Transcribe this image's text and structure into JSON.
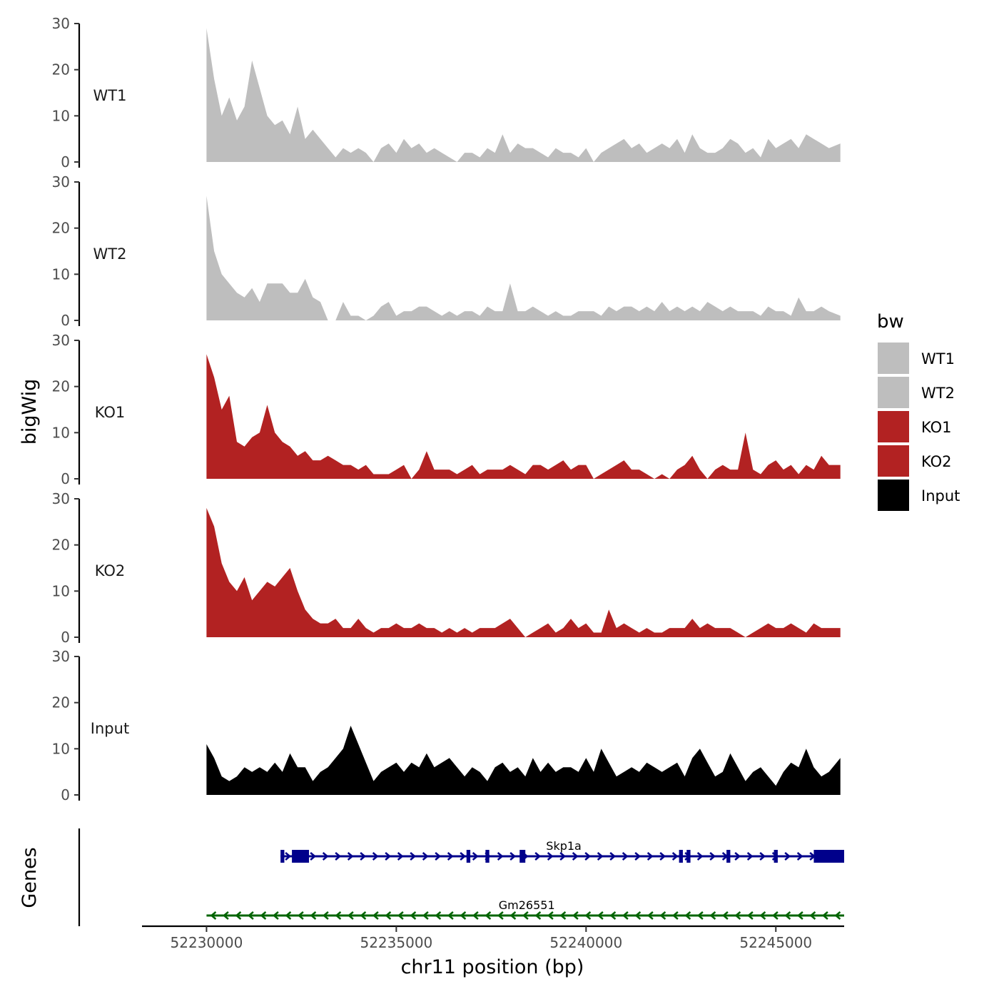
{
  "chart_data": {
    "type": "area",
    "title": "",
    "ylabel": "bigWig",
    "xlabel": "chr11 position (bp)",
    "xlim": [
      52228300,
      52246800
    ],
    "ylim": [
      0,
      30
    ],
    "yticks": [
      0,
      10,
      20,
      30
    ],
    "xticks": [
      52230000,
      52235000,
      52240000,
      52245000
    ],
    "xtick_labels": [
      "52230000",
      "52235000",
      "52240000",
      "52245000"
    ],
    "legend": {
      "title": "bw",
      "position": "right",
      "entries": [
        {
          "label": "WT1",
          "color": "#bebebe"
        },
        {
          "label": "WT2",
          "color": "#bebebe"
        },
        {
          "label": "KO1",
          "color": "#b22222"
        },
        {
          "label": "KO2",
          "color": "#b22222"
        },
        {
          "label": "Input",
          "color": "#000000"
        }
      ]
    },
    "x": [
      52230000,
      52230200,
      52230400,
      52230600,
      52230800,
      52231000,
      52231200,
      52231400,
      52231600,
      52231800,
      52232000,
      52232200,
      52232400,
      52232600,
      52232800,
      52233000,
      52233200,
      52233400,
      52233600,
      52233800,
      52234000,
      52234200,
      52234400,
      52234600,
      52234800,
      52235000,
      52235200,
      52235400,
      52235600,
      52235800,
      52236000,
      52236200,
      52236400,
      52236600,
      52236800,
      52237000,
      52237200,
      52237400,
      52237600,
      52237800,
      52238000,
      52238200,
      52238400,
      52238600,
      52238800,
      52239000,
      52239200,
      52239400,
      52239600,
      52239800,
      52240000,
      52240200,
      52240400,
      52240600,
      52240800,
      52241000,
      52241200,
      52241400,
      52241600,
      52241800,
      52242000,
      52242200,
      52242400,
      52242600,
      52242800,
      52243000,
      52243200,
      52243400,
      52243600,
      52243800,
      52244000,
      52244200,
      52244400,
      52244600,
      52244800,
      52245000,
      52245200,
      52245400,
      52245600,
      52245800,
      52246000,
      52246200,
      52246400,
      52246700
    ],
    "series": [
      {
        "name": "WT1",
        "color": "#bebebe",
        "values": [
          29,
          18,
          10,
          14,
          9,
          12,
          22,
          16,
          10,
          8,
          9,
          6,
          12,
          5,
          7,
          5,
          3,
          1,
          3,
          2,
          3,
          2,
          0,
          3,
          4,
          2,
          5,
          3,
          4,
          2,
          3,
          2,
          1,
          0,
          2,
          2,
          1,
          3,
          2,
          6,
          2,
          4,
          3,
          3,
          2,
          1,
          3,
          2,
          2,
          1,
          3,
          0,
          2,
          3,
          4,
          5,
          3,
          4,
          2,
          3,
          4,
          3,
          5,
          2,
          6,
          3,
          2,
          2,
          3,
          5,
          4,
          2,
          3,
          1,
          5,
          3,
          4,
          5,
          3,
          6,
          5,
          4,
          3,
          4
        ]
      },
      {
        "name": "WT2",
        "color": "#bebebe",
        "values": [
          27,
          15,
          10,
          8,
          6,
          5,
          7,
          4,
          8,
          8,
          8,
          6,
          6,
          9,
          5,
          4,
          0,
          0,
          4,
          1,
          1,
          0,
          1,
          3,
          4,
          1,
          2,
          2,
          3,
          3,
          2,
          1,
          2,
          1,
          2,
          2,
          1,
          3,
          2,
          2,
          8,
          2,
          2,
          3,
          2,
          1,
          2,
          1,
          1,
          2,
          2,
          2,
          1,
          3,
          2,
          3,
          3,
          2,
          3,
          2,
          4,
          2,
          3,
          2,
          3,
          2,
          4,
          3,
          2,
          3,
          2,
          2,
          2,
          1,
          3,
          2,
          2,
          1,
          5,
          2,
          2,
          3,
          2,
          1
        ]
      },
      {
        "name": "KO1",
        "color": "#b22222",
        "values": [
          27,
          22,
          15,
          18,
          8,
          7,
          9,
          10,
          16,
          10,
          8,
          7,
          5,
          6,
          4,
          4,
          5,
          4,
          3,
          3,
          2,
          3,
          1,
          1,
          1,
          2,
          3,
          0,
          2,
          6,
          2,
          2,
          2,
          1,
          2,
          3,
          1,
          2,
          2,
          2,
          3,
          2,
          1,
          3,
          3,
          2,
          3,
          4,
          2,
          3,
          3,
          0,
          1,
          2,
          3,
          4,
          2,
          2,
          1,
          0,
          1,
          0,
          2,
          3,
          5,
          2,
          0,
          2,
          3,
          2,
          2,
          10,
          2,
          1,
          3,
          4,
          2,
          3,
          1,
          3,
          2,
          5,
          3,
          3
        ]
      },
      {
        "name": "KO2",
        "color": "#b22222",
        "values": [
          28,
          24,
          16,
          12,
          10,
          13,
          8,
          10,
          12,
          11,
          13,
          15,
          10,
          6,
          4,
          3,
          3,
          4,
          2,
          2,
          4,
          2,
          1,
          2,
          2,
          3,
          2,
          2,
          3,
          2,
          2,
          1,
          2,
          1,
          2,
          1,
          2,
          2,
          2,
          3,
          4,
          2,
          0,
          1,
          2,
          3,
          1,
          2,
          4,
          2,
          3,
          1,
          1,
          6,
          2,
          3,
          2,
          1,
          2,
          1,
          1,
          2,
          2,
          2,
          4,
          2,
          3,
          2,
          2,
          2,
          1,
          0,
          1,
          2,
          3,
          2,
          2,
          3,
          2,
          1,
          3,
          2,
          2,
          2
        ]
      },
      {
        "name": "Input",
        "color": "#000000",
        "values": [
          11,
          8,
          4,
          3,
          4,
          6,
          5,
          6,
          5,
          7,
          5,
          9,
          6,
          6,
          3,
          5,
          6,
          8,
          10,
          15,
          11,
          7,
          3,
          5,
          6,
          7,
          5,
          7,
          6,
          9,
          6,
          7,
          8,
          6,
          4,
          6,
          5,
          3,
          6,
          7,
          5,
          6,
          4,
          8,
          5,
          7,
          5,
          6,
          6,
          5,
          8,
          5,
          10,
          7,
          4,
          5,
          6,
          5,
          7,
          6,
          5,
          6,
          7,
          4,
          8,
          10,
          7,
          4,
          5,
          9,
          6,
          3,
          5,
          6,
          4,
          2,
          5,
          7,
          6,
          10,
          6,
          4,
          5,
          8
        ]
      }
    ],
    "genes": {
      "track_label": "Genes",
      "items": [
        {
          "name": "Skp1a",
          "strand": "+",
          "start": 52231950,
          "end": 52246800,
          "color": "#00008b",
          "exons": [
            [
              52231950,
              52232050
            ],
            [
              52232250,
              52232700
            ],
            [
              52236850,
              52236950
            ],
            [
              52237350,
              52237450
            ],
            [
              52238250,
              52238400
            ],
            [
              52242450,
              52242550
            ],
            [
              52242650,
              52242750
            ],
            [
              52243700,
              52243800
            ],
            [
              52244950,
              52245050
            ],
            [
              52246000,
              52246800
            ]
          ]
        },
        {
          "name": "Gm26551",
          "strand": "-",
          "start": 52230000,
          "end": 52246800,
          "color": "#006400",
          "exons": []
        }
      ]
    }
  }
}
